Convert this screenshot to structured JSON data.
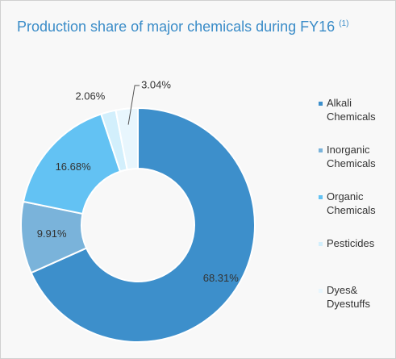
{
  "chart_data": {
    "type": "donut",
    "title": "Production share of major chemicals during FY16",
    "title_note": "(1)",
    "categories": [
      "Alkali Chemicals",
      "Inorganic Chemicals",
      "Organic Chemicals",
      "Pesticides",
      "Dyes& Dyestuffs"
    ],
    "values": [
      68.31,
      9.91,
      16.68,
      2.06,
      3.04
    ],
    "value_labels": [
      "68.31%",
      "9.91%",
      "16.68%",
      "2.06%",
      "3.04%"
    ],
    "colors": [
      "#3d8fcb",
      "#7ab3da",
      "#63c2f3",
      "#d2effc",
      "#e8f6fd"
    ],
    "legend": "right"
  }
}
